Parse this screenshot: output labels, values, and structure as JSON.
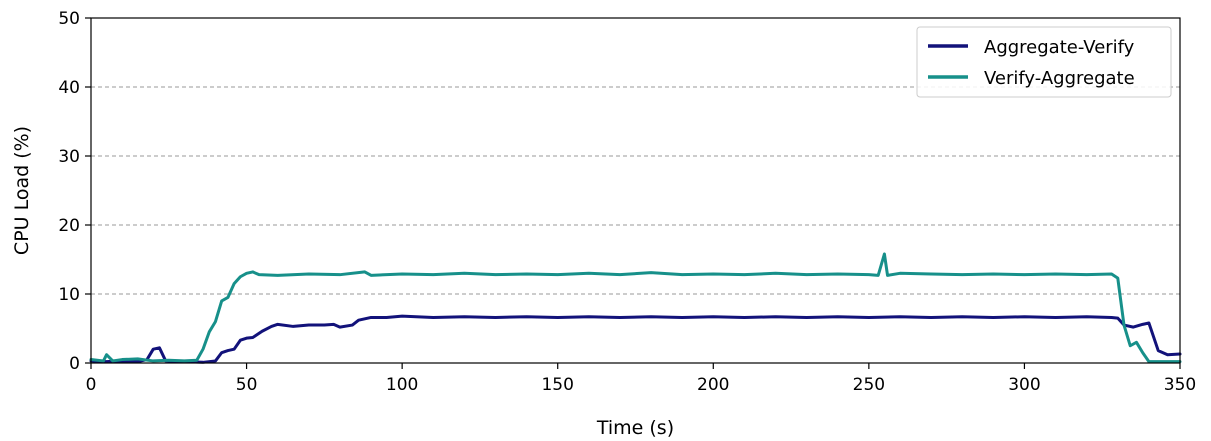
{
  "chart_data": {
    "type": "line",
    "title": "",
    "xlabel": "Time (s)",
    "ylabel": "CPU Load (%)",
    "xlim": [
      0,
      350
    ],
    "ylim": [
      0,
      50
    ],
    "xticks": [
      0,
      50,
      100,
      150,
      200,
      250,
      300,
      350
    ],
    "yticks": [
      0,
      10,
      20,
      30,
      40,
      50
    ],
    "grid": "horizontal dashed",
    "legend_position": "top-right",
    "series": [
      {
        "name": "Aggregate-Verify",
        "color": "#12127a",
        "points": [
          [
            0,
            0.3
          ],
          [
            5,
            0.2
          ],
          [
            10,
            0.3
          ],
          [
            15,
            0.2
          ],
          [
            18,
            0.5
          ],
          [
            20,
            2.0
          ],
          [
            22,
            2.2
          ],
          [
            24,
            0.3
          ],
          [
            30,
            0.2
          ],
          [
            36,
            0.1
          ],
          [
            40,
            0.3
          ],
          [
            42,
            1.5
          ],
          [
            44,
            1.8
          ],
          [
            46,
            2.0
          ],
          [
            48,
            3.3
          ],
          [
            50,
            3.6
          ],
          [
            52,
            3.7
          ],
          [
            55,
            4.6
          ],
          [
            58,
            5.3
          ],
          [
            60,
            5.6
          ],
          [
            65,
            5.3
          ],
          [
            70,
            5.5
          ],
          [
            75,
            5.5
          ],
          [
            78,
            5.6
          ],
          [
            80,
            5.2
          ],
          [
            84,
            5.5
          ],
          [
            86,
            6.2
          ],
          [
            90,
            6.6
          ],
          [
            95,
            6.6
          ],
          [
            100,
            6.8
          ],
          [
            110,
            6.6
          ],
          [
            120,
            6.7
          ],
          [
            130,
            6.6
          ],
          [
            140,
            6.7
          ],
          [
            150,
            6.6
          ],
          [
            160,
            6.7
          ],
          [
            170,
            6.6
          ],
          [
            180,
            6.7
          ],
          [
            190,
            6.6
          ],
          [
            200,
            6.7
          ],
          [
            210,
            6.6
          ],
          [
            220,
            6.7
          ],
          [
            230,
            6.6
          ],
          [
            240,
            6.7
          ],
          [
            250,
            6.6
          ],
          [
            260,
            6.7
          ],
          [
            270,
            6.6
          ],
          [
            280,
            6.7
          ],
          [
            290,
            6.6
          ],
          [
            300,
            6.7
          ],
          [
            310,
            6.6
          ],
          [
            320,
            6.7
          ],
          [
            328,
            6.6
          ],
          [
            330,
            6.5
          ],
          [
            332,
            5.5
          ],
          [
            335,
            5.2
          ],
          [
            338,
            5.6
          ],
          [
            340,
            5.8
          ],
          [
            343,
            1.8
          ],
          [
            346,
            1.2
          ],
          [
            350,
            1.3
          ]
        ]
      },
      {
        "name": "Verify-Aggregate",
        "color": "#17908a",
        "points": [
          [
            0,
            0.5
          ],
          [
            4,
            0.3
          ],
          [
            5,
            1.2
          ],
          [
            7,
            0.3
          ],
          [
            10,
            0.5
          ],
          [
            15,
            0.6
          ],
          [
            20,
            0.3
          ],
          [
            25,
            0.4
          ],
          [
            30,
            0.3
          ],
          [
            34,
            0.4
          ],
          [
            36,
            2.0
          ],
          [
            38,
            4.5
          ],
          [
            40,
            6.0
          ],
          [
            42,
            9.0
          ],
          [
            44,
            9.5
          ],
          [
            46,
            11.5
          ],
          [
            48,
            12.5
          ],
          [
            50,
            13.0
          ],
          [
            52,
            13.2
          ],
          [
            54,
            12.8
          ],
          [
            60,
            12.7
          ],
          [
            70,
            12.9
          ],
          [
            80,
            12.8
          ],
          [
            88,
            13.2
          ],
          [
            90,
            12.7
          ],
          [
            100,
            12.9
          ],
          [
            110,
            12.8
          ],
          [
            120,
            13.0
          ],
          [
            130,
            12.8
          ],
          [
            140,
            12.9
          ],
          [
            150,
            12.8
          ],
          [
            160,
            13.0
          ],
          [
            170,
            12.8
          ],
          [
            180,
            13.1
          ],
          [
            190,
            12.8
          ],
          [
            200,
            12.9
          ],
          [
            210,
            12.8
          ],
          [
            220,
            13.0
          ],
          [
            230,
            12.8
          ],
          [
            240,
            12.9
          ],
          [
            250,
            12.8
          ],
          [
            253,
            12.7
          ],
          [
            255,
            15.8
          ],
          [
            256,
            12.7
          ],
          [
            260,
            13.0
          ],
          [
            270,
            12.9
          ],
          [
            280,
            12.8
          ],
          [
            290,
            12.9
          ],
          [
            300,
            12.8
          ],
          [
            310,
            12.9
          ],
          [
            320,
            12.8
          ],
          [
            328,
            12.9
          ],
          [
            330,
            12.3
          ],
          [
            332,
            5.5
          ],
          [
            334,
            2.5
          ],
          [
            336,
            3.0
          ],
          [
            338,
            1.5
          ],
          [
            340,
            0.2
          ],
          [
            345,
            0.2
          ],
          [
            350,
            0.2
          ]
        ]
      }
    ]
  }
}
